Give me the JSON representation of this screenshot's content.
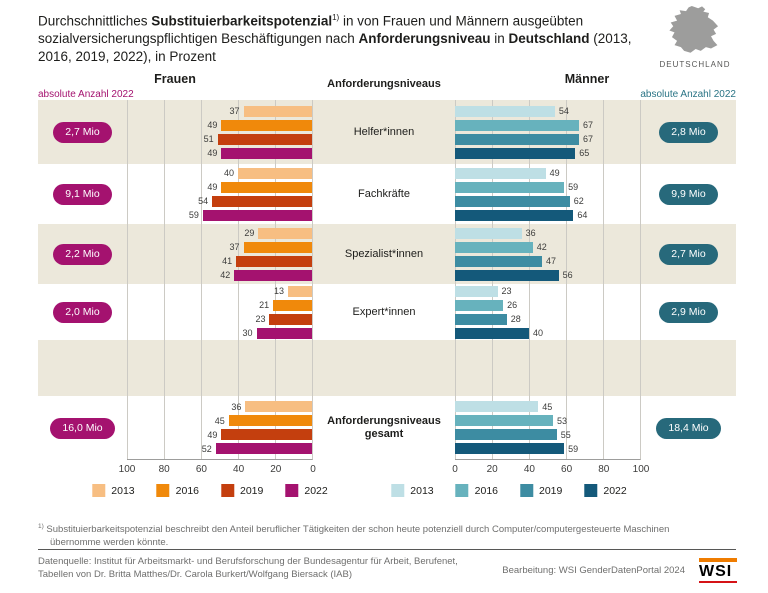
{
  "title": {
    "segments": [
      {
        "text": "Durchschnittliches ",
        "bold": false,
        "sup": false
      },
      {
        "text": "Substituierbarkeitspotenzial",
        "bold": true,
        "sup": false
      },
      {
        "text": "1)",
        "bold": false,
        "sup": true
      },
      {
        "text": " in von Frauen und Männern ausgeübten sozialversicherungspflichtigen Beschäftigungen nach ",
        "bold": false,
        "sup": false
      },
      {
        "text": "Anforderungsniveau",
        "bold": true,
        "sup": false
      },
      {
        "text": " in ",
        "bold": false,
        "sup": false
      },
      {
        "text": "Deutschland",
        "bold": true,
        "sup": false
      },
      {
        "text": " (2013, 2016, 2019, 2022), in Prozent",
        "bold": false,
        "sup": false
      }
    ]
  },
  "map": {
    "label": "DEUTSCHLAND",
    "color": "#9D9D9C"
  },
  "header": {
    "frauen": "Frauen",
    "center": "Anforderungsniveaus",
    "maenner": "Männer",
    "abs_left": "absolute Anzahl 2022",
    "abs_right": "absolute Anzahl 2022",
    "abs_left_color": "#A4126F",
    "abs_right_color": "#2A7485"
  },
  "chart_data": {
    "type": "bar",
    "orientation": "horizontal-mirrored",
    "title": "Durchschnittliches Substituierbarkeitspotenzial in von Frauen und Männern ausgeübten sozialversicherungspflichtigen Beschäftigungen nach Anforderungsniveau in Deutschland (2013, 2016, 2019, 2022), in Prozent",
    "unit": "Prozent",
    "years": [
      "2013",
      "2016",
      "2019",
      "2022"
    ],
    "axis_max": 100,
    "ticks_frauen": [
      100,
      80,
      60,
      40,
      20,
      0
    ],
    "ticks_maenner": [
      0,
      20,
      40,
      60,
      80,
      100
    ],
    "grid": true,
    "groups": [
      {
        "label": "Helfer*innen",
        "bold": false,
        "frauen": {
          "values": [
            37,
            49,
            51,
            49
          ],
          "absolute_2022": "2,7 Mio"
        },
        "maenner": {
          "values": [
            54,
            67,
            67,
            65
          ],
          "absolute_2022": "2,8 Mio"
        }
      },
      {
        "label": "Fachkräfte",
        "bold": false,
        "frauen": {
          "values": [
            40,
            49,
            54,
            59
          ],
          "absolute_2022": "9,1 Mio"
        },
        "maenner": {
          "values": [
            49,
            59,
            62,
            64
          ],
          "absolute_2022": "9,9 Mio"
        }
      },
      {
        "label": "Spezialist*innen",
        "bold": false,
        "frauen": {
          "values": [
            29,
            37,
            41,
            42
          ],
          "absolute_2022": "2,2 Mio"
        },
        "maenner": {
          "values": [
            36,
            42,
            47,
            56
          ],
          "absolute_2022": "2,7 Mio"
        }
      },
      {
        "label": "Expert*innen",
        "bold": false,
        "frauen": {
          "values": [
            13,
            21,
            23,
            30
          ],
          "absolute_2022": "2,0 Mio"
        },
        "maenner": {
          "values": [
            23,
            26,
            28,
            40
          ],
          "absolute_2022": "2,9 Mio"
        }
      },
      {
        "label": "Anforderungsniveaus gesamt",
        "bold": true,
        "frauen": {
          "values": [
            36,
            45,
            49,
            52
          ],
          "absolute_2022": "16,0 Mio"
        },
        "maenner": {
          "values": [
            45,
            53,
            55,
            59
          ],
          "absolute_2022": "18,4 Mio"
        }
      }
    ],
    "colors": {
      "frauen": [
        "#F7BE82",
        "#F0890B",
        "#C43F0E",
        "#A4126F"
      ],
      "maenner": [
        "#BEDFE5",
        "#67B2BD",
        "#3D8CA2",
        "#14597A"
      ],
      "pill_frauen": "#A4126F",
      "pill_maenner": "#27697B",
      "row_shade": "#ECE8DB",
      "grid": "#CCCAC4"
    }
  },
  "legend": {
    "frauen_years": [
      "2013",
      "2016",
      "2019",
      "2022"
    ],
    "maenner_years": [
      "2013",
      "2016",
      "2019",
      "2022"
    ]
  },
  "footnote": {
    "marker": "1)",
    "text": " Substituierbarkeitspotenzial beschreibt den Anteil beruflicher Tätigkeiten der schon heute potenziell durch Computer/computergesteuerte Maschinen übernomme werden könnte."
  },
  "source": {
    "line1": "Datenquelle: Institut für Arbeitsmarkt- und Berufsforschung der Bundesagentur für Arbeit, Berufenet,",
    "line2": "Tabellen von Dr. Britta Matthes/Dr. Carola Burkert/Wolfgang Biersack (IAB)"
  },
  "branding": {
    "bearbeitung": "Bearbeitung: WSI GenderDatenPortal 2024",
    "logo_text": "WSI"
  }
}
